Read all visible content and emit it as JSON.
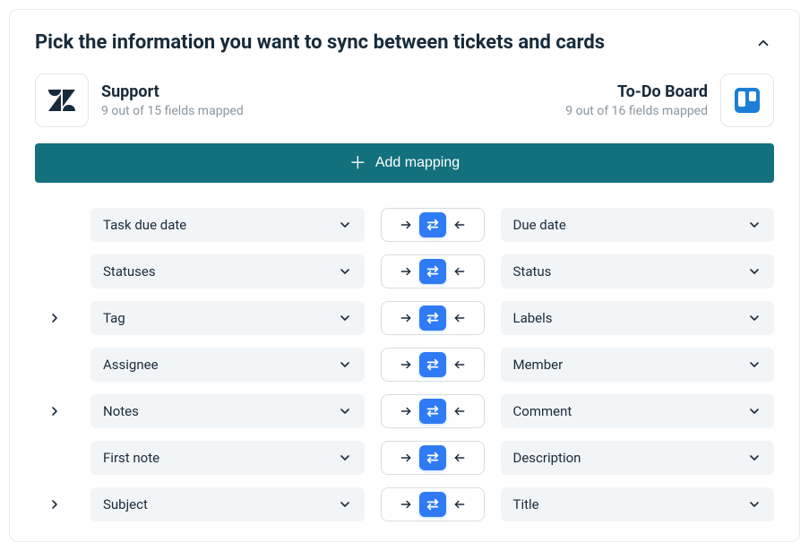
{
  "header": {
    "title": "Pick the information you want to sync between tickets and cards"
  },
  "left_app": {
    "name": "Support",
    "subtitle": "9 out of 15 fields mapped"
  },
  "right_app": {
    "name": "To-Do Board",
    "subtitle": "9 out of 16 fields mapped"
  },
  "add_button": {
    "label": "Add mapping"
  },
  "mappings": [
    {
      "expandable": false,
      "left": "Task due date",
      "right": "Due date"
    },
    {
      "expandable": false,
      "left": "Statuses",
      "right": "Status"
    },
    {
      "expandable": true,
      "left": "Tag",
      "right": "Labels"
    },
    {
      "expandable": false,
      "left": "Assignee",
      "right": "Member"
    },
    {
      "expandable": true,
      "left": "Notes",
      "right": "Comment"
    },
    {
      "expandable": false,
      "left": "First note",
      "right": "Description"
    },
    {
      "expandable": true,
      "left": "Subject",
      "right": "Title"
    }
  ],
  "colors": {
    "button_bg": "#13717d",
    "sync_badge": "#2f7bf6",
    "field_bg": "#f2f5f7",
    "border": "#e3e7ea",
    "text": "#172b3a",
    "subtext": "#8a96a0"
  }
}
